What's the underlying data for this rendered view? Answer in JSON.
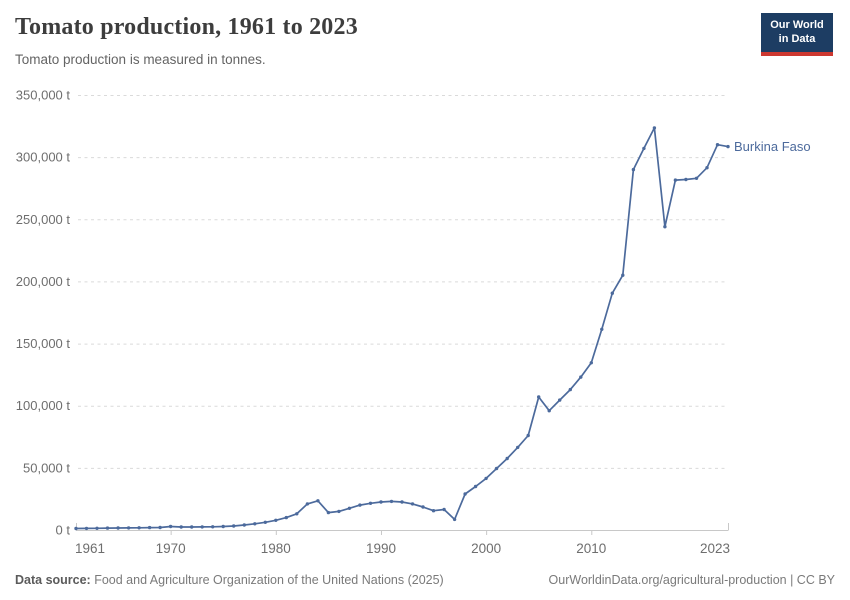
{
  "header": {
    "title": "Tomato production, 1961 to 2023",
    "subtitle": "Tomato production is measured in tonnes.",
    "logo": {
      "line1": "Our World",
      "line2": "in Data",
      "bg_color": "#1d3d63",
      "stripe_color": "#cd3830"
    }
  },
  "footer": {
    "source_label": "Data source:",
    "source_text": " Food and Agriculture Organization of the United Nations (2025)",
    "right_text": "OurWorldinData.org/agricultural-production | CC BY"
  },
  "chart_data": {
    "type": "line",
    "title": "Tomato production, 1961 to 2023",
    "unit": "t",
    "xlabel": "",
    "ylabel": "",
    "grid": "horizontal-dashed",
    "legend_position": "end-of-line-label",
    "xlim": [
      1961,
      2023
    ],
    "ylim": [
      0,
      350000
    ],
    "x_ticks": [
      1961,
      1970,
      1980,
      1990,
      2000,
      2010,
      2023
    ],
    "x_tick_labels": [
      "1961",
      "1970",
      "1980",
      "1990",
      "2000",
      "2010",
      "2023"
    ],
    "y_ticks": [
      0,
      50000,
      100000,
      150000,
      200000,
      250000,
      300000,
      350000
    ],
    "y_tick_labels": [
      "0 t",
      "50,000 t",
      "100,000 t",
      "150,000 t",
      "200,000 t",
      "250,000 t",
      "300,000 t",
      "350,000 t"
    ],
    "series": [
      {
        "name": "Burkina Faso",
        "color": "#4c6a9c",
        "x_start": 1961,
        "x_end": 2023,
        "values": [
          1200,
          1300,
          1400,
          1500,
          1600,
          1700,
          1800,
          1900,
          2000,
          2800,
          2400,
          2450,
          2500,
          2600,
          2800,
          3200,
          4000,
          5000,
          6200,
          7800,
          10000,
          13000,
          21000,
          23500,
          14000,
          15000,
          17500,
          20000,
          21500,
          22500,
          23000,
          22500,
          21000,
          18500,
          15500,
          16500,
          8500,
          29000,
          35000,
          41500,
          49500,
          57500,
          66500,
          76000,
          107000,
          96000,
          104500,
          113000,
          123000,
          134500,
          161500,
          190500,
          205000,
          290000,
          307000,
          323500,
          244000,
          281500,
          282000,
          283000,
          291500,
          310000,
          308500
        ]
      }
    ],
    "colors": {
      "gridline": "#dadada",
      "axis": "#c8c8c8",
      "tick_text": "#6e6e6e"
    }
  }
}
